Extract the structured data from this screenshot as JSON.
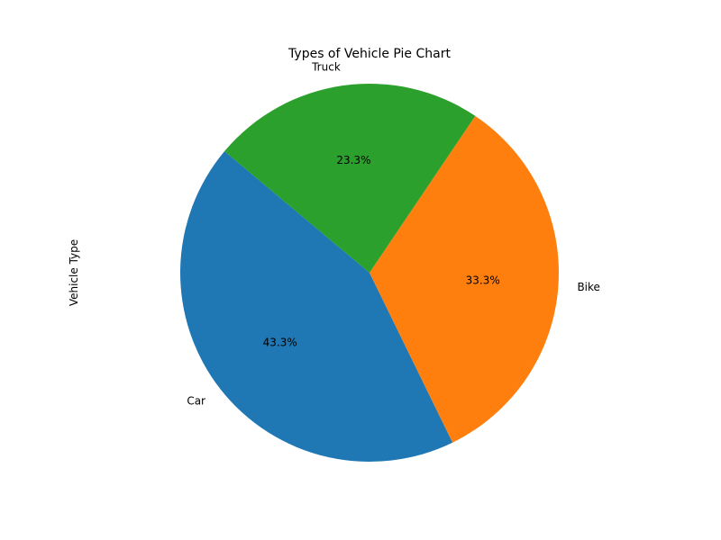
{
  "chart_data": {
    "type": "pie",
    "title": "Types of Vehicle Pie Chart",
    "ylabel": "Vehicle Type",
    "start_angle_deg": 140,
    "direction": "counterclockwise",
    "slices": [
      {
        "label": "Car",
        "value": 43.3,
        "pct_label": "43.3%",
        "color": "#1f77b4"
      },
      {
        "label": "Bike",
        "value": 33.3,
        "pct_label": "33.3%",
        "color": "#ff7f0e"
      },
      {
        "label": "Truck",
        "value": 23.3,
        "pct_label": "23.3%",
        "color": "#2ca02c"
      }
    ],
    "legend": "none",
    "grid": false
  }
}
